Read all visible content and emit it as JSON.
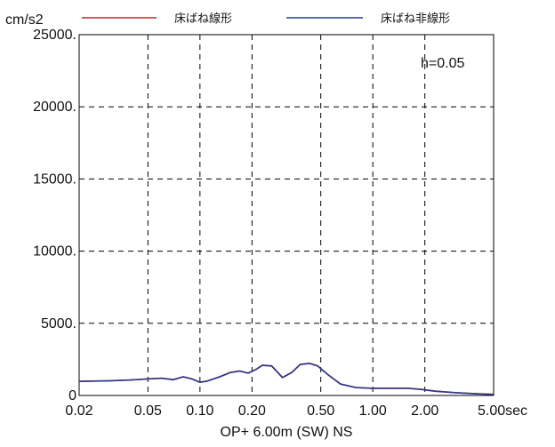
{
  "chart_data": {
    "type": "line",
    "title": "",
    "xlabel": "OP+ 6.00m (SW) NS",
    "ylabel": "cm/s2",
    "x_scale": "log",
    "xlim": [
      0.02,
      5.0
    ],
    "ylim": [
      0,
      25000
    ],
    "grid": true,
    "legend_position": "top",
    "x_ticks": [
      "0.02",
      "0.05",
      "0.10",
      "0.20",
      "0.50",
      "1.00",
      "2.00",
      "5.00sec"
    ],
    "x_tick_values": [
      0.02,
      0.05,
      0.1,
      0.2,
      0.5,
      1.0,
      2.0,
      5.0
    ],
    "y_ticks": [
      "0",
      "5000.",
      "10000.",
      "15000.",
      "20000.",
      "25000."
    ],
    "y_tick_values": [
      0,
      5000,
      10000,
      15000,
      20000,
      25000
    ],
    "annotation": "h=0.05",
    "series": [
      {
        "name": "床ばね線形",
        "color": "#c0282d",
        "x": [
          0.02,
          0.03,
          0.04,
          0.05,
          0.06,
          0.07,
          0.08,
          0.09,
          0.1,
          0.11,
          0.13,
          0.15,
          0.17,
          0.19,
          0.21,
          0.23,
          0.26,
          0.3,
          0.34,
          0.38,
          0.43,
          0.48,
          0.55,
          0.65,
          0.8,
          1.0,
          1.3,
          1.6,
          1.9,
          2.3,
          3.0,
          4.0,
          5.0
        ],
        "values": [
          980,
          1020,
          1080,
          1150,
          1200,
          1100,
          1300,
          1150,
          920,
          1000,
          1300,
          1600,
          1700,
          1550,
          1800,
          2100,
          2050,
          1250,
          1600,
          2150,
          2230,
          2050,
          1450,
          800,
          550,
          500,
          500,
          500,
          430,
          300,
          200,
          120,
          80
        ]
      },
      {
        "name": "床ばね非線形",
        "color": "#2b3a8f",
        "x": [
          0.02,
          0.03,
          0.04,
          0.05,
          0.06,
          0.07,
          0.08,
          0.09,
          0.1,
          0.11,
          0.13,
          0.15,
          0.17,
          0.19,
          0.21,
          0.23,
          0.26,
          0.3,
          0.34,
          0.38,
          0.43,
          0.48,
          0.55,
          0.65,
          0.8,
          1.0,
          1.3,
          1.6,
          1.9,
          2.3,
          3.0,
          4.0,
          5.0
        ],
        "values": [
          970,
          1010,
          1070,
          1140,
          1190,
          1090,
          1290,
          1140,
          910,
          990,
          1290,
          1590,
          1690,
          1540,
          1790,
          2090,
          2040,
          1240,
          1590,
          2140,
          2220,
          2040,
          1440,
          790,
          540,
          490,
          490,
          490,
          420,
          290,
          190,
          110,
          70
        ]
      }
    ]
  }
}
